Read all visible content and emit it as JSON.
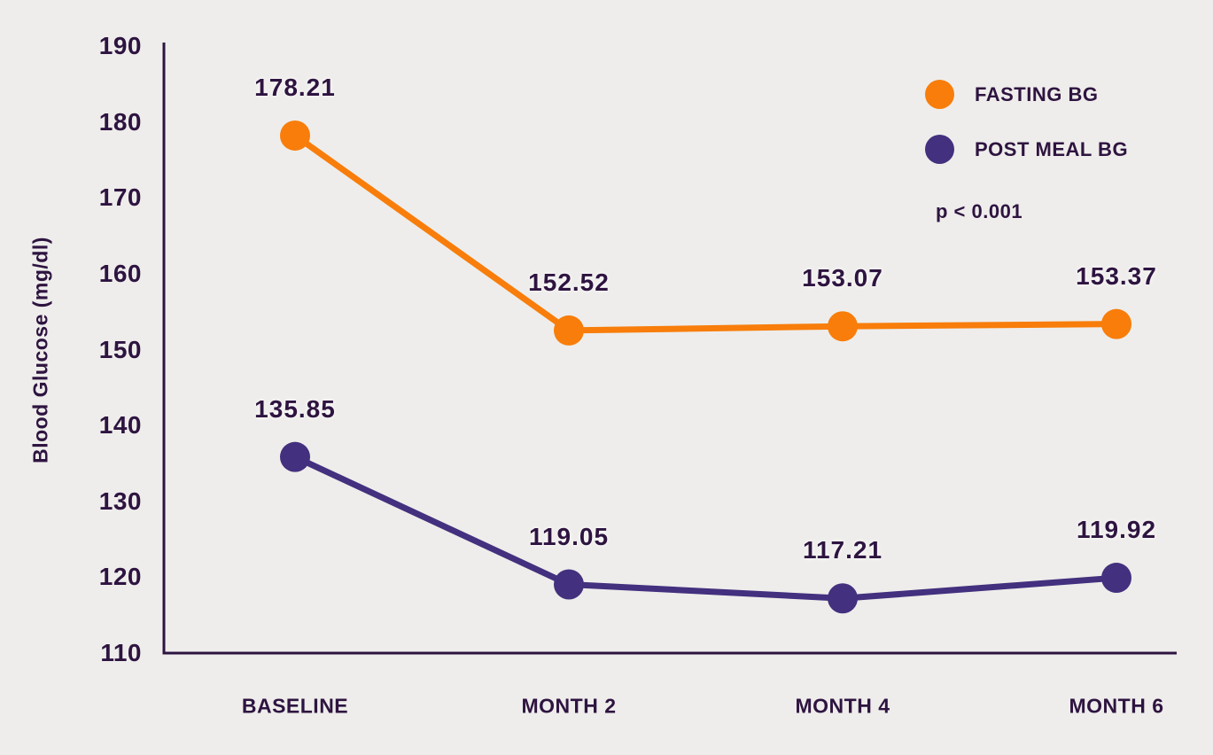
{
  "colors": {
    "background": "#EEEDEB",
    "text": "#2E1440",
    "axis": "#2E1440"
  },
  "chart_data": {
    "type": "line",
    "categories": [
      "BASELINE",
      "MONTH 2",
      "MONTH 4",
      "MONTH 6"
    ],
    "series": [
      {
        "name": "FASTING BG",
        "color": "#F87D0A",
        "values": [
          178.21,
          152.52,
          153.07,
          153.37
        ]
      },
      {
        "name": "POST MEAL BG",
        "color": "#43307E",
        "values": [
          135.85,
          119.05,
          117.21,
          119.92
        ]
      }
    ],
    "title": "",
    "xlabel": "",
    "ylabel": "Blood Glucose (mg/dl)",
    "ylim": [
      110,
      190
    ],
    "ytick_step": 10,
    "yticks": [
      190,
      180,
      170,
      160,
      150,
      140,
      130,
      120,
      110
    ],
    "point_label_decimals": 2,
    "annotation": "p < 0.001",
    "legend_position": "top-right",
    "grid": false
  }
}
